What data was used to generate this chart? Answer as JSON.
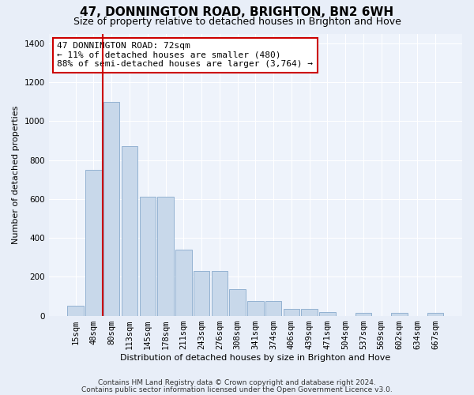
{
  "title": "47, DONNINGTON ROAD, BRIGHTON, BN2 6WH",
  "subtitle": "Size of property relative to detached houses in Brighton and Hove",
  "xlabel": "Distribution of detached houses by size in Brighton and Hove",
  "ylabel": "Number of detached properties",
  "footnote1": "Contains HM Land Registry data © Crown copyright and database right 2024.",
  "footnote2": "Contains public sector information licensed under the Open Government Licence v3.0.",
  "bar_labels": [
    "15sqm",
    "48sqm",
    "80sqm",
    "113sqm",
    "145sqm",
    "178sqm",
    "211sqm",
    "243sqm",
    "276sqm",
    "308sqm",
    "341sqm",
    "374sqm",
    "406sqm",
    "439sqm",
    "471sqm",
    "504sqm",
    "537sqm",
    "569sqm",
    "602sqm",
    "634sqm",
    "667sqm"
  ],
  "bar_values": [
    50,
    750,
    1100,
    870,
    610,
    610,
    340,
    230,
    230,
    135,
    75,
    75,
    35,
    35,
    20,
    0,
    15,
    0,
    15,
    0,
    15
  ],
  "bar_color": "#c8d8ea",
  "bar_edgecolor": "#88aacc",
  "vline_x": 1.5,
  "annotation_line1": "47 DONNINGTON ROAD: 72sqm",
  "annotation_line2": "← 11% of detached houses are smaller (480)",
  "annotation_line3": "88% of semi-detached houses are larger (3,764) →",
  "annotation_box_edgecolor": "#cc0000",
  "vline_color": "#cc0000",
  "ylim": [
    0,
    1450
  ],
  "yticks": [
    0,
    200,
    400,
    600,
    800,
    1000,
    1200,
    1400
  ],
  "bg_color": "#e8eef8",
  "plot_bg_color": "#eef3fb",
  "grid_color": "#ffffff",
  "title_fontsize": 11,
  "subtitle_fontsize": 9,
  "axis_label_fontsize": 8,
  "tick_fontsize": 7.5,
  "annotation_fontsize": 8,
  "footnote_fontsize": 6.5
}
